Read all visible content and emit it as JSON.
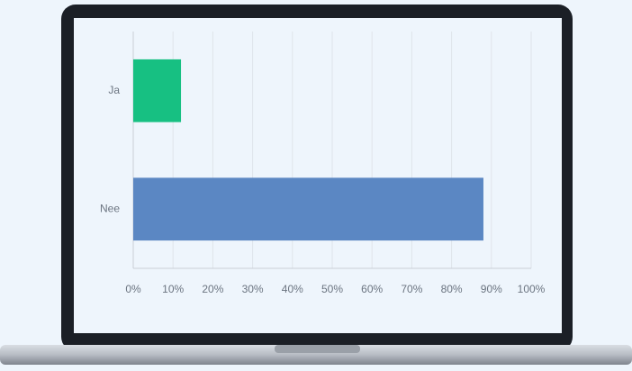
{
  "chart_data": {
    "type": "bar",
    "categories": [
      "Ja",
      "Nee"
    ],
    "values": [
      12,
      88
    ],
    "colors": [
      "#17c082",
      "#5b87c3"
    ],
    "xlim": [
      0,
      100
    ],
    "xticks": [
      {
        "value": 0,
        "label": "0%"
      },
      {
        "value": 10,
        "label": "10%"
      },
      {
        "value": 20,
        "label": "20%"
      },
      {
        "value": 30,
        "label": "30%"
      },
      {
        "value": 40,
        "label": "40%"
      },
      {
        "value": 50,
        "label": "50%"
      },
      {
        "value": 60,
        "label": "60%"
      },
      {
        "value": 70,
        "label": "70%"
      },
      {
        "value": 80,
        "label": "80%"
      },
      {
        "value": 90,
        "label": "90%"
      },
      {
        "value": 100,
        "label": "100%"
      }
    ],
    "grid": true
  }
}
